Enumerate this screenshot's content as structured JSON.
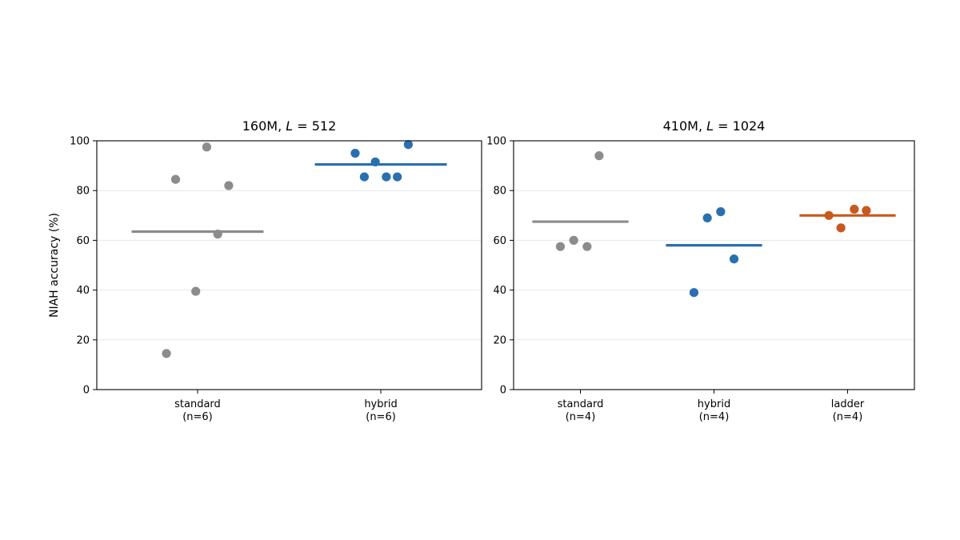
{
  "chart_data": [
    {
      "type": "scatter",
      "title": "160M, L = 512",
      "title_parts": {
        "pre": "160M, ",
        "var": "L",
        "post": " = 512"
      },
      "ylabel": "NIAH accuracy (%)",
      "ylim": [
        0,
        100
      ],
      "yticks": [
        "0",
        "20",
        "40",
        "60",
        "80",
        "100"
      ],
      "grid": "horizontal",
      "categories": [
        {
          "name": "standard",
          "sub": "(n=6)",
          "color": "#8c8c8c",
          "mean": 63.5,
          "points": [
            [
              -0.17,
              14.5
            ],
            [
              -0.12,
              84.5
            ],
            [
              -0.01,
              39.5
            ],
            [
              0.05,
              97.5
            ],
            [
              0.11,
              62.5
            ],
            [
              0.17,
              82
            ]
          ]
        },
        {
          "name": "hybrid",
          "sub": "(n=6)",
          "color": "#2a6fb0",
          "mean": 90.5,
          "points": [
            [
              -0.14,
              95
            ],
            [
              -0.09,
              85.5
            ],
            [
              -0.03,
              91.5
            ],
            [
              0.03,
              85.5
            ],
            [
              0.09,
              85.5
            ],
            [
              0.15,
              98.5
            ]
          ]
        }
      ]
    },
    {
      "type": "scatter",
      "title": "410M, L = 1024",
      "title_parts": {
        "pre": "410M, ",
        "var": "L",
        "post": " = 1024"
      },
      "ylabel": "",
      "ylim": [
        0,
        100
      ],
      "yticks": [
        "0",
        "20",
        "40",
        "60",
        "80",
        "100"
      ],
      "grid": "horizontal",
      "categories": [
        {
          "name": "standard",
          "sub": "(n=4)",
          "color": "#8c8c8c",
          "mean": 67.5,
          "points": [
            [
              -0.15,
              57.5
            ],
            [
              -0.05,
              60
            ],
            [
              0.05,
              57.5
            ],
            [
              0.14,
              94
            ]
          ]
        },
        {
          "name": "hybrid",
          "sub": "(n=4)",
          "color": "#2a6fb0",
          "mean": 58,
          "points": [
            [
              -0.15,
              39
            ],
            [
              -0.05,
              69
            ],
            [
              0.05,
              71.5
            ],
            [
              0.15,
              52.5
            ]
          ]
        },
        {
          "name": "ladder",
          "sub": "(n=4)",
          "color": "#c8581d",
          "mean": 70,
          "points": [
            [
              -0.14,
              70
            ],
            [
              -0.05,
              65
            ],
            [
              0.05,
              72.5
            ],
            [
              0.14,
              72
            ]
          ]
        }
      ]
    }
  ]
}
